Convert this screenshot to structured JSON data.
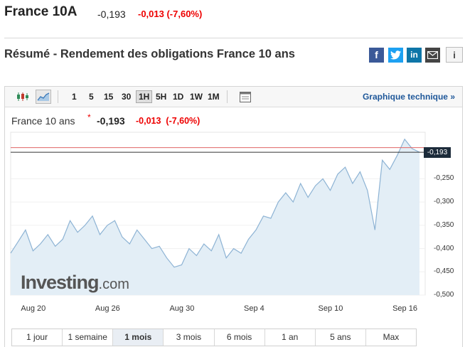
{
  "header": {
    "name": "France 10A",
    "last": "-0,193",
    "change": "-0,013 (-7,60%)"
  },
  "page_title": "Résumé - Rendement des obligations France 10 ans",
  "social": {
    "facebook": "f",
    "linkedin": "in",
    "info": "i"
  },
  "toolbar": {
    "timeframes": [
      "1",
      "5",
      "15",
      "30",
      "1H",
      "5H",
      "1D",
      "1W",
      "1M"
    ],
    "active_timeframe": "1H",
    "technical_link": "Graphique technique »"
  },
  "legend": {
    "name": "France 10 ans",
    "star": "*",
    "last": "-0,193",
    "change": "-0,013",
    "change_pct": "(-7,60%)"
  },
  "brand": {
    "name": "Investing",
    "suffix": ".com"
  },
  "ranges": [
    "1 jour",
    "1 semaine",
    "1 mois",
    "3 mois",
    "6 mois",
    "1 an",
    "5 ans",
    "Max"
  ],
  "active_range": "1 mois",
  "colors": {
    "line": "#8db3d4",
    "area": "#e3eef6",
    "prev_close": "#e06666",
    "price_tag": "#1c2b3a",
    "negative": "#e00000",
    "link": "#1e5799"
  },
  "chart_data": {
    "type": "area",
    "title": "France 10 ans",
    "current_value": -0.193,
    "current_label": "-0,193",
    "ylim": [
      -0.5,
      -0.15
    ],
    "yticks": [
      -0.25,
      -0.3,
      -0.35,
      -0.4,
      -0.45,
      -0.5
    ],
    "ytick_labels": [
      "-0,250",
      "-0,300",
      "-0,350",
      "-0,400",
      "-0,450",
      "-0,500"
    ],
    "xtick_labels": [
      "Aug 20",
      "Aug 26",
      "Aug 30",
      "Sep 4",
      "Sep 10",
      "Sep 16"
    ],
    "xtick_index": [
      3,
      13,
      23,
      33,
      43,
      53
    ],
    "reference_line": -0.183,
    "values": [
      -0.41,
      -0.385,
      -0.36,
      -0.405,
      -0.39,
      -0.37,
      -0.395,
      -0.38,
      -0.34,
      -0.365,
      -0.35,
      -0.33,
      -0.37,
      -0.35,
      -0.34,
      -0.375,
      -0.39,
      -0.36,
      -0.38,
      -0.4,
      -0.395,
      -0.42,
      -0.44,
      -0.435,
      -0.4,
      -0.415,
      -0.39,
      -0.405,
      -0.37,
      -0.42,
      -0.4,
      -0.41,
      -0.38,
      -0.36,
      -0.33,
      -0.335,
      -0.3,
      -0.28,
      -0.3,
      -0.26,
      -0.29,
      -0.265,
      -0.25,
      -0.275,
      -0.24,
      -0.225,
      -0.26,
      -0.235,
      -0.275,
      -0.36,
      -0.21,
      -0.23,
      -0.2,
      -0.165,
      -0.185,
      -0.193
    ]
  }
}
